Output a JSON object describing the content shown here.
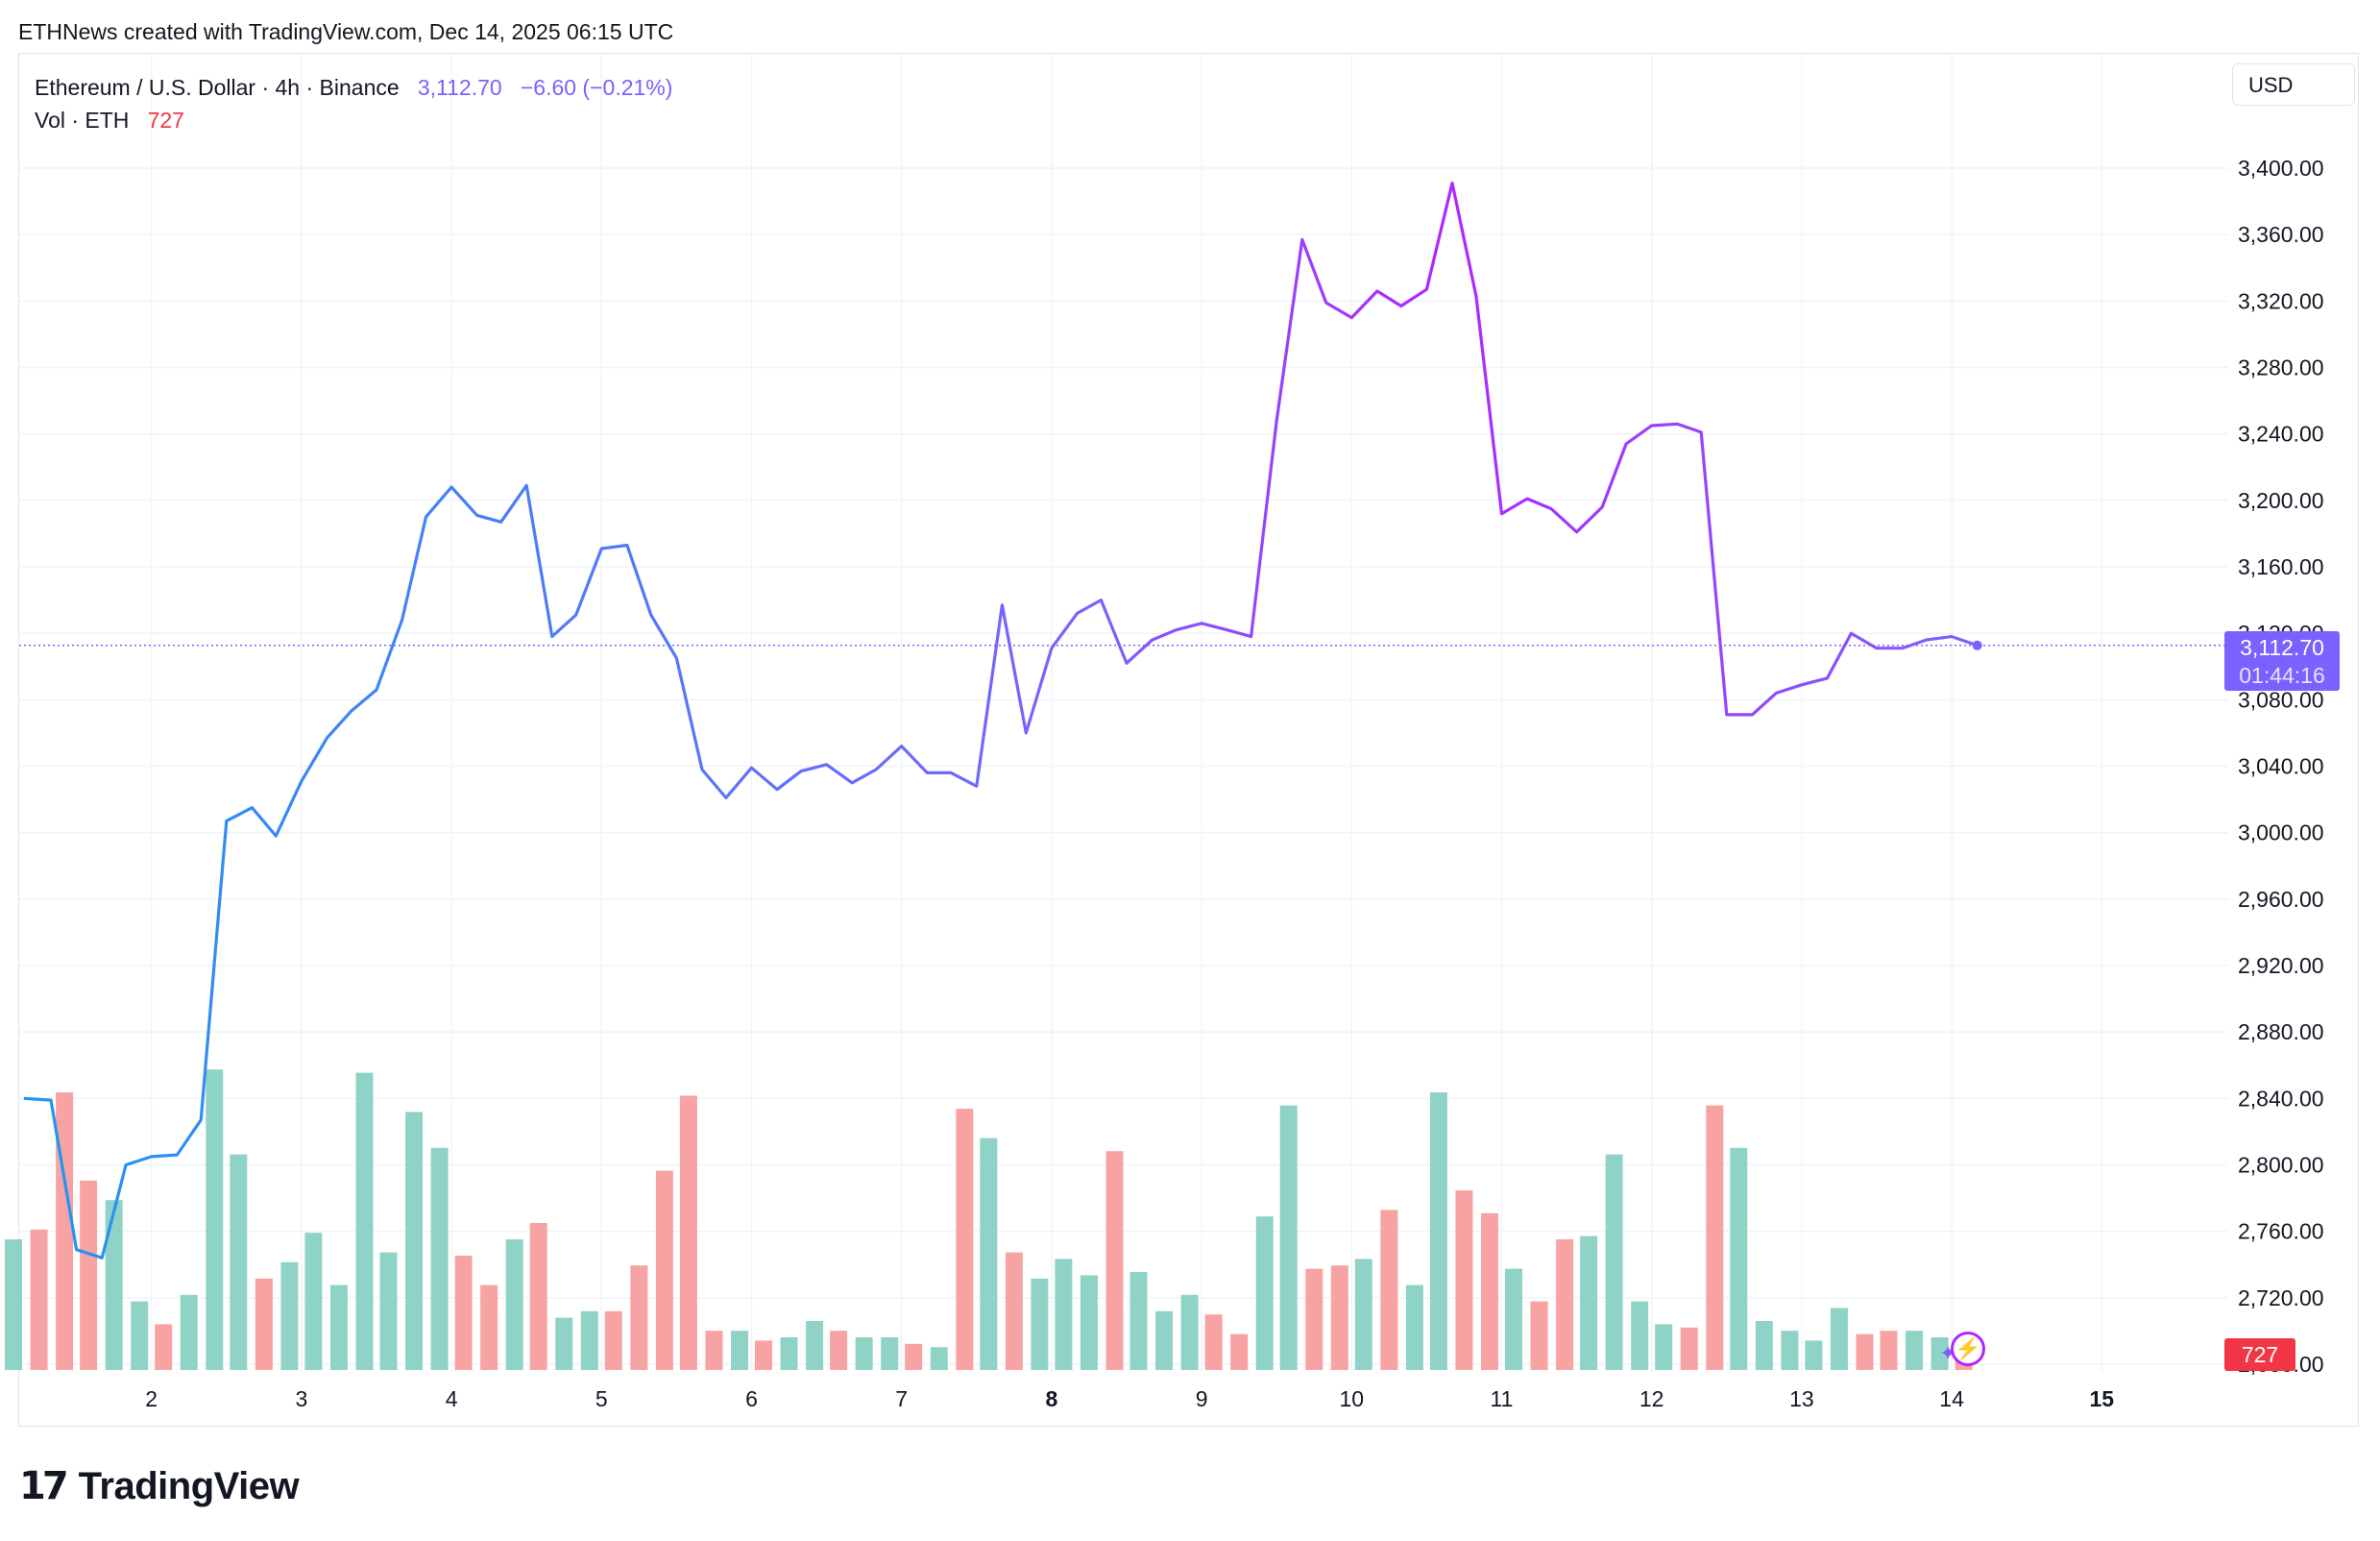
{
  "attribution": "ETHNews created with TradingView.com, Dec 14, 2025 06:15 UTC",
  "legend": {
    "symbol": "Ethereum / U.S. Dollar · 4h · Binance",
    "last_price": "3,112.70",
    "change": "−6.60 (−0.21%)",
    "volume_label": "Vol · ETH",
    "volume_value": "727"
  },
  "currency_button": "USD",
  "price_label": {
    "price": "3,112.70",
    "countdown": "01:44:16"
  },
  "volume_label_right": "727",
  "logo": {
    "mark": "17",
    "name": "TradingView"
  },
  "icons": {
    "flash": "flash-icon",
    "sparkle": "sparkle-icon"
  },
  "colors": {
    "line_start": "#2196f3",
    "line_mid": "#7b61ff",
    "line_end": "#b026ff",
    "volume_up": "#8fd3c6",
    "volume_down": "#f7a3a3",
    "accent": "#7b61ff",
    "down": "#f23645"
  },
  "chart_data": {
    "type": "line",
    "title": "Ethereum / U.S. Dollar · 4h · Binance",
    "interval": "4h",
    "x_ticks": [
      {
        "label": "2",
        "day": 2,
        "bold": false
      },
      {
        "label": "3",
        "day": 3,
        "bold": false
      },
      {
        "label": "4",
        "day": 4,
        "bold": false
      },
      {
        "label": "5",
        "day": 5,
        "bold": false
      },
      {
        "label": "6",
        "day": 6,
        "bold": false
      },
      {
        "label": "7",
        "day": 7,
        "bold": false
      },
      {
        "label": "8",
        "day": 8,
        "bold": true
      },
      {
        "label": "9",
        "day": 9,
        "bold": false
      },
      {
        "label": "10",
        "day": 10,
        "bold": false
      },
      {
        "label": "11",
        "day": 11,
        "bold": false
      },
      {
        "label": "12",
        "day": 12,
        "bold": false
      },
      {
        "label": "13",
        "day": 13,
        "bold": false
      },
      {
        "label": "14",
        "day": 14,
        "bold": false
      },
      {
        "label": "15",
        "day": 15,
        "bold": true
      }
    ],
    "y_ticks": [
      "3,400.00",
      "3,360.00",
      "3,320.00",
      "3,280.00",
      "3,240.00",
      "3,200.00",
      "3,160.00",
      "3,120.00",
      "3,080.00",
      "3,040.00",
      "3,000.00",
      "2,960.00",
      "2,920.00",
      "2,880.00",
      "2,840.00",
      "2,800.00",
      "2,760.00",
      "2,720.00",
      "2,680.00"
    ],
    "ylim": [
      2680,
      3400
    ],
    "price_line": 3112.7,
    "grid": true,
    "series": [
      {
        "name": "ETHUSD",
        "points": [
          [
            1.15,
            2840
          ],
          [
            1.33,
            2839
          ],
          [
            1.5,
            2749
          ],
          [
            1.67,
            2744
          ],
          [
            1.83,
            2800
          ],
          [
            2.0,
            2805
          ],
          [
            2.17,
            2806
          ],
          [
            2.33,
            2827
          ],
          [
            2.5,
            3007
          ],
          [
            2.67,
            3015
          ],
          [
            2.83,
            2998
          ],
          [
            3.0,
            3031
          ],
          [
            3.17,
            3057
          ],
          [
            3.33,
            3073
          ],
          [
            3.5,
            3086
          ],
          [
            3.67,
            3128
          ],
          [
            3.83,
            3190
          ],
          [
            4.0,
            3208
          ],
          [
            4.17,
            3191
          ],
          [
            4.33,
            3187
          ],
          [
            4.5,
            3209
          ],
          [
            4.67,
            3118
          ],
          [
            4.83,
            3131
          ],
          [
            5.0,
            3171
          ],
          [
            5.17,
            3173
          ],
          [
            5.33,
            3131
          ],
          [
            5.5,
            3105
          ],
          [
            5.67,
            3038
          ],
          [
            5.83,
            3021
          ],
          [
            6.0,
            3039
          ],
          [
            6.17,
            3026
          ],
          [
            6.33,
            3037
          ],
          [
            6.5,
            3041
          ],
          [
            6.67,
            3030
          ],
          [
            6.83,
            3038
          ],
          [
            7.0,
            3052
          ],
          [
            7.17,
            3036
          ],
          [
            7.33,
            3036
          ],
          [
            7.5,
            3028
          ],
          [
            7.67,
            3137
          ],
          [
            7.83,
            3060
          ],
          [
            8.0,
            3111
          ],
          [
            8.17,
            3132
          ],
          [
            8.33,
            3140
          ],
          [
            8.5,
            3102
          ],
          [
            8.67,
            3116
          ],
          [
            8.83,
            3122
          ],
          [
            9.0,
            3126
          ],
          [
            9.17,
            3122
          ],
          [
            9.33,
            3118
          ],
          [
            9.5,
            3248
          ],
          [
            9.67,
            3357
          ],
          [
            9.83,
            3319
          ],
          [
            10.0,
            3310
          ],
          [
            10.17,
            3326
          ],
          [
            10.33,
            3317
          ],
          [
            10.5,
            3327
          ],
          [
            10.67,
            3391
          ],
          [
            10.83,
            3323
          ],
          [
            11.0,
            3192
          ],
          [
            11.17,
            3201
          ],
          [
            11.33,
            3195
          ],
          [
            11.5,
            3181
          ],
          [
            11.67,
            3196
          ],
          [
            11.83,
            3234
          ],
          [
            12.0,
            3245
          ],
          [
            12.17,
            3246
          ],
          [
            12.33,
            3241
          ],
          [
            12.5,
            3071
          ],
          [
            12.67,
            3071
          ],
          [
            12.83,
            3084
          ],
          [
            13.0,
            3089
          ],
          [
            13.17,
            3093
          ],
          [
            13.33,
            3120
          ],
          [
            13.5,
            3111
          ],
          [
            13.67,
            3111
          ],
          [
            13.83,
            3116
          ],
          [
            14.0,
            3118
          ],
          [
            14.17,
            3112.7
          ]
        ]
      }
    ],
    "volume": {
      "ylim_relative_max": 100,
      "bars": [
        [
          1.08,
          40,
          "up"
        ],
        [
          1.25,
          43,
          "down"
        ],
        [
          1.42,
          85,
          "down"
        ],
        [
          1.58,
          58,
          "down"
        ],
        [
          1.75,
          52,
          "up"
        ],
        [
          1.92,
          21,
          "up"
        ],
        [
          2.08,
          14,
          "down"
        ],
        [
          2.25,
          23,
          "up"
        ],
        [
          2.42,
          92,
          "up"
        ],
        [
          2.58,
          66,
          "up"
        ],
        [
          2.75,
          28,
          "down"
        ],
        [
          2.92,
          33,
          "up"
        ],
        [
          3.08,
          42,
          "up"
        ],
        [
          3.25,
          26,
          "up"
        ],
        [
          3.42,
          91,
          "up"
        ],
        [
          3.58,
          36,
          "up"
        ],
        [
          3.75,
          79,
          "up"
        ],
        [
          3.92,
          68,
          "up"
        ],
        [
          4.08,
          35,
          "down"
        ],
        [
          4.25,
          26,
          "down"
        ],
        [
          4.42,
          40,
          "up"
        ],
        [
          4.58,
          45,
          "down"
        ],
        [
          4.75,
          16,
          "up"
        ],
        [
          4.92,
          18,
          "up"
        ],
        [
          5.08,
          18,
          "down"
        ],
        [
          5.25,
          32,
          "down"
        ],
        [
          5.42,
          61,
          "down"
        ],
        [
          5.58,
          84,
          "down"
        ],
        [
          5.75,
          12,
          "down"
        ],
        [
          5.92,
          12,
          "up"
        ],
        [
          6.08,
          9,
          "down"
        ],
        [
          6.25,
          10,
          "up"
        ],
        [
          6.42,
          15,
          "up"
        ],
        [
          6.58,
          12,
          "down"
        ],
        [
          6.75,
          10,
          "up"
        ],
        [
          6.92,
          10,
          "up"
        ],
        [
          7.08,
          8,
          "down"
        ],
        [
          7.25,
          7,
          "up"
        ],
        [
          7.42,
          80,
          "down"
        ],
        [
          7.58,
          71,
          "up"
        ],
        [
          7.75,
          36,
          "down"
        ],
        [
          7.92,
          28,
          "up"
        ],
        [
          8.08,
          34,
          "up"
        ],
        [
          8.25,
          29,
          "up"
        ],
        [
          8.42,
          67,
          "down"
        ],
        [
          8.58,
          30,
          "up"
        ],
        [
          8.75,
          18,
          "up"
        ],
        [
          8.92,
          23,
          "up"
        ],
        [
          9.08,
          17,
          "down"
        ],
        [
          9.25,
          11,
          "down"
        ],
        [
          9.42,
          47,
          "up"
        ],
        [
          9.58,
          81,
          "up"
        ],
        [
          9.75,
          31,
          "down"
        ],
        [
          9.92,
          32,
          "down"
        ],
        [
          10.08,
          34,
          "up"
        ],
        [
          10.25,
          49,
          "down"
        ],
        [
          10.42,
          26,
          "up"
        ],
        [
          10.58,
          85,
          "up"
        ],
        [
          10.75,
          55,
          "down"
        ],
        [
          10.92,
          48,
          "down"
        ],
        [
          11.08,
          31,
          "up"
        ],
        [
          11.25,
          21,
          "down"
        ],
        [
          11.42,
          40,
          "down"
        ],
        [
          11.58,
          41,
          "up"
        ],
        [
          11.75,
          66,
          "up"
        ],
        [
          11.92,
          21,
          "up"
        ],
        [
          12.08,
          14,
          "up"
        ],
        [
          12.25,
          13,
          "down"
        ],
        [
          12.42,
          81,
          "down"
        ],
        [
          12.58,
          68,
          "up"
        ],
        [
          12.75,
          15,
          "up"
        ],
        [
          12.92,
          12,
          "up"
        ],
        [
          13.08,
          9,
          "up"
        ],
        [
          13.25,
          19,
          "up"
        ],
        [
          13.42,
          11,
          "down"
        ],
        [
          13.58,
          12,
          "down"
        ],
        [
          13.75,
          12,
          "up"
        ],
        [
          13.92,
          10,
          "up"
        ],
        [
          14.08,
          6,
          "down"
        ]
      ]
    }
  }
}
